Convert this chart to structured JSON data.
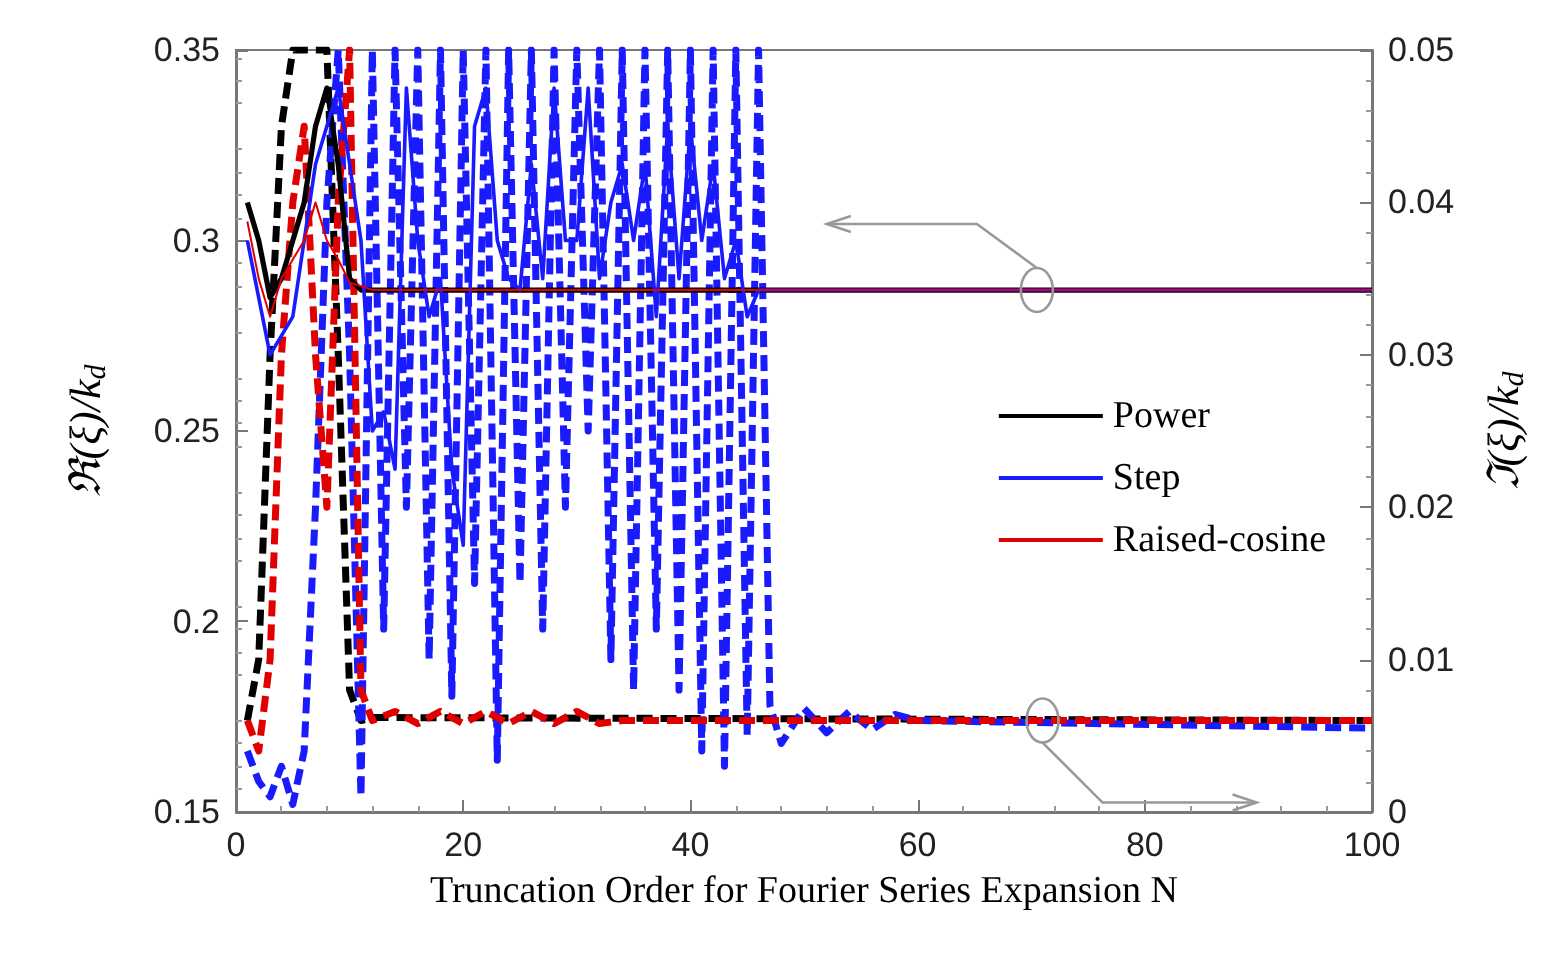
{
  "chart_data": {
    "type": "line",
    "xlabel": "Truncation Order for Fourier Series Expansion N",
    "ylabel": "ℜ(ξ)/k$_{d}$",
    "y2label": "ℑ(ξ)/k$_{d}$",
    "xlim": [
      0,
      100
    ],
    "xticks": [
      0,
      20,
      40,
      60,
      80,
      100
    ],
    "ylim": [
      0.15,
      0.35
    ],
    "yticks": [
      0.15,
      0.2,
      0.25,
      0.3,
      0.35
    ],
    "y2lim": [
      0,
      0.05
    ],
    "y2ticks": [
      0,
      0.01,
      0.02,
      0.03,
      0.04,
      0.05
    ],
    "grid": false,
    "legend": "right",
    "marker": "none",
    "series": [
      {
        "name": "Power",
        "color": "#000000",
        "line_style": "solid",
        "x": [
          1,
          2,
          3,
          4,
          5,
          6,
          7,
          8,
          9,
          10,
          11,
          12,
          100
        ],
        "values": [
          0.31,
          0.3,
          0.285,
          0.29,
          0.3,
          0.31,
          0.33,
          0.34,
          0.32,
          0.29,
          0.287,
          0.287,
          0.287
        ]
      },
      {
        "name": "Step",
        "color": "#1a1aff",
        "line_style": "solid",
        "x": [
          1,
          3,
          5,
          7,
          9,
          11,
          12,
          13,
          14,
          15,
          16,
          17,
          18,
          19,
          20,
          21,
          22,
          23,
          24,
          25,
          26,
          27,
          28,
          29,
          30,
          31,
          32,
          33,
          34,
          35,
          36,
          37,
          38,
          39,
          40,
          41,
          42,
          43,
          44,
          45,
          46,
          47,
          100
        ],
        "values": [
          0.3,
          0.27,
          0.28,
          0.32,
          0.34,
          0.3,
          0.25,
          0.255,
          0.24,
          0.34,
          0.3,
          0.28,
          0.29,
          0.24,
          0.22,
          0.33,
          0.34,
          0.3,
          0.29,
          0.287,
          0.32,
          0.29,
          0.34,
          0.3,
          0.3,
          0.34,
          0.29,
          0.31,
          0.32,
          0.3,
          0.32,
          0.28,
          0.33,
          0.29,
          0.33,
          0.3,
          0.32,
          0.29,
          0.3,
          0.28,
          0.287,
          0.287,
          0.287
        ]
      },
      {
        "name": "Raised-cosine",
        "color": "#e00000",
        "line_style": "solid",
        "x": [
          1,
          2,
          3,
          4,
          5,
          6,
          7,
          8,
          9,
          10,
          12,
          100
        ],
        "values": [
          0.305,
          0.29,
          0.28,
          0.29,
          0.295,
          0.3,
          0.31,
          0.3,
          0.295,
          0.289,
          0.287,
          0.287
        ]
      },
      {
        "color": "#000000",
        "line_style": "dashed",
        "axis": "y2",
        "x": [
          1,
          2,
          3,
          4,
          5,
          8,
          9,
          10,
          11,
          12,
          100
        ],
        "values": [
          0.006,
          0.01,
          0.03,
          0.045,
          0.05,
          0.05,
          0.03,
          0.008,
          0.006,
          0.0062,
          0.006
        ]
      },
      {
        "color": "#1a1aff",
        "line_style": "dashed",
        "axis": "y2",
        "x": [
          1,
          2,
          3,
          4,
          5,
          6,
          7,
          8,
          9,
          10,
          11,
          12,
          13,
          14,
          15,
          16,
          17,
          18,
          19,
          20,
          21,
          22,
          23,
          24,
          25,
          26,
          27,
          28,
          29,
          30,
          31,
          32,
          33,
          34,
          35,
          36,
          37,
          38,
          39,
          40,
          41,
          42,
          43,
          44,
          45,
          46,
          47,
          48,
          50,
          52,
          54,
          56,
          58,
          60,
          100
        ],
        "values": [
          0.004,
          0.002,
          0.001,
          0.003,
          0.0005,
          0.004,
          0.02,
          0.04,
          0.05,
          0.03,
          0.001,
          0.05,
          0.012,
          0.05,
          0.02,
          0.05,
          0.01,
          0.05,
          0.0076,
          0.05,
          0.015,
          0.05,
          0.0034,
          0.05,
          0.015,
          0.05,
          0.012,
          0.05,
          0.02,
          0.05,
          0.025,
          0.05,
          0.01,
          0.05,
          0.008,
          0.05,
          0.012,
          0.05,
          0.008,
          0.05,
          0.004,
          0.05,
          0.003,
          0.05,
          0.005,
          0.05,
          0.007,
          0.0045,
          0.0068,
          0.0052,
          0.0066,
          0.0054,
          0.0064,
          0.006,
          0.0055
        ]
      },
      {
        "color": "#e00000",
        "line_style": "dashed",
        "axis": "y2",
        "x": [
          1,
          2,
          3,
          4,
          5,
          6,
          7,
          8,
          9,
          10,
          11,
          12,
          14,
          16,
          18,
          20,
          22,
          24,
          26,
          28,
          30,
          32,
          34,
          100
        ],
        "values": [
          0.006,
          0.004,
          0.01,
          0.03,
          0.04,
          0.045,
          0.03,
          0.02,
          0.04,
          0.05,
          0.008,
          0.006,
          0.0066,
          0.0058,
          0.0066,
          0.0058,
          0.0066,
          0.0058,
          0.0066,
          0.0058,
          0.0066,
          0.0058,
          0.006,
          0.006
        ]
      }
    ]
  }
}
